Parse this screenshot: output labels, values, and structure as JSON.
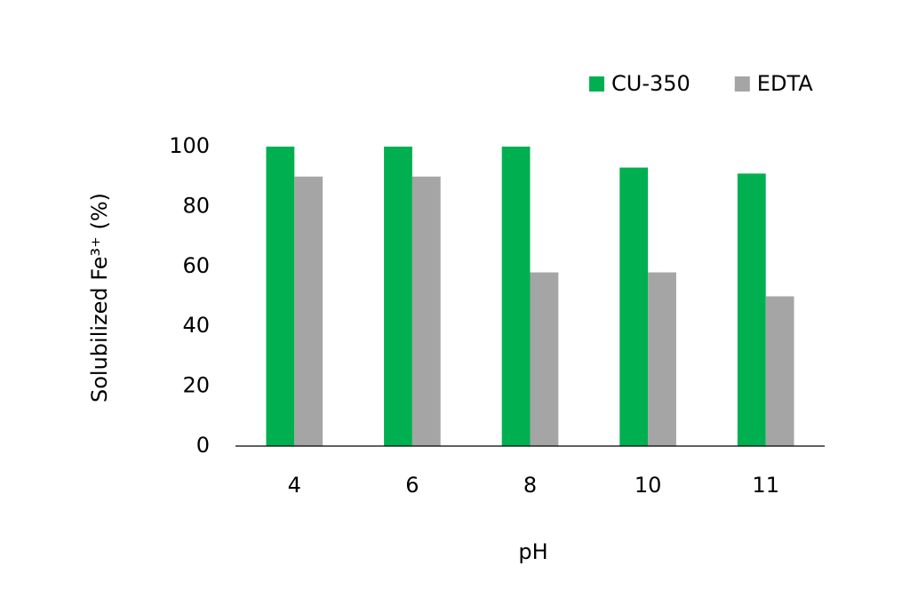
{
  "chart_data": {
    "type": "bar",
    "x_label": "pH",
    "y_label": "Solubilized Fe³⁺ (%)",
    "categories": [
      "4",
      "6",
      "8",
      "10",
      "11"
    ],
    "series": [
      {
        "name": "CU-350",
        "color": "#00b050",
        "values": [
          100,
          100,
          100,
          93,
          91
        ]
      },
      {
        "name": "EDTA",
        "color": "#a5a5a5",
        "values": [
          90,
          90,
          58,
          58,
          50
        ]
      }
    ],
    "ylim": [
      0,
      100
    ],
    "yticks": [
      0,
      20,
      40,
      60,
      80,
      100
    ],
    "grid": false,
    "legend": "top-right"
  }
}
